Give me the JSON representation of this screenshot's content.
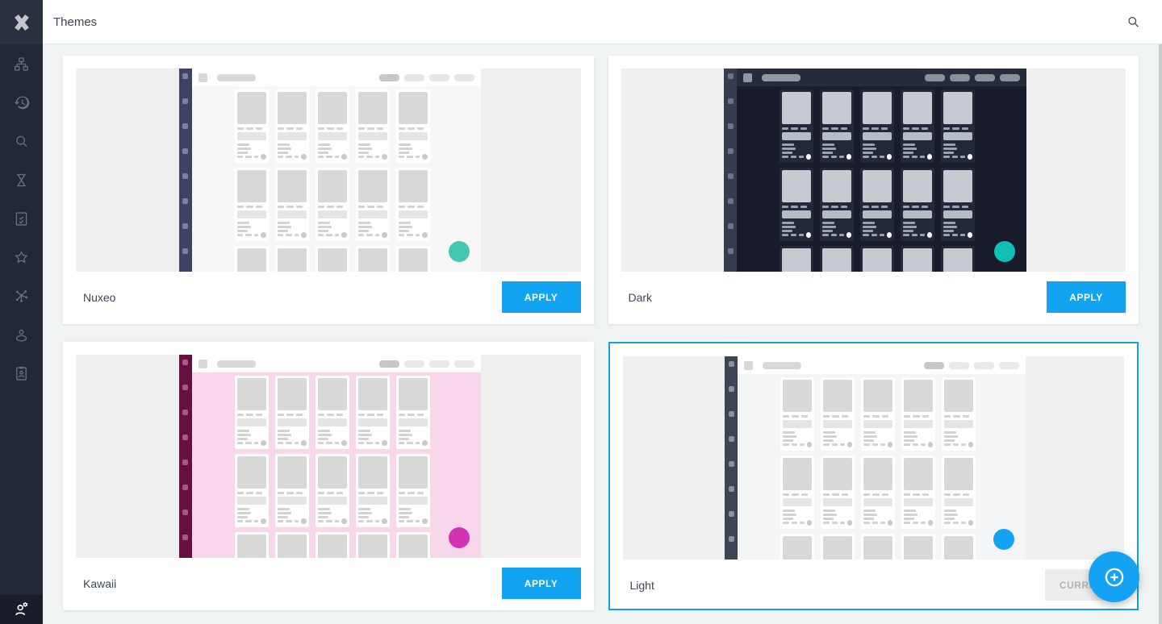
{
  "header": {
    "title": "Themes",
    "search_icon": "search-icon"
  },
  "sidebar": {
    "logo_icon": "nuxeo-x-logo",
    "items": [
      {
        "icon": "sitemap-icon"
      },
      {
        "icon": "history-icon"
      },
      {
        "icon": "search-icon"
      },
      {
        "icon": "hourglass-icon"
      },
      {
        "icon": "tasks-icon"
      },
      {
        "icon": "favorites-star-icon"
      },
      {
        "icon": "collections-hub-icon"
      },
      {
        "icon": "person-pin-icon"
      },
      {
        "icon": "profile-badge-icon"
      }
    ],
    "admin_icon": "user-settings-icon"
  },
  "colors": {
    "accent_blue": "#12a3f1",
    "selected_border": "#14a0e6",
    "page_bg": "#f0f3f4",
    "sidebar_bg": "#232836",
    "sidebar_bottom_bg": "#191d27",
    "sidebar_icon": "#697082",
    "header_text": "#3e4656"
  },
  "fab": {
    "icon": "add-circle-icon",
    "color": "#14a3f2"
  },
  "themes": [
    {
      "name": "Nuxeo",
      "selected": false,
      "button": {
        "label": "APPLY",
        "type": "apply",
        "disabled": false
      },
      "palette": {
        "margin": "#efefef",
        "stripe": "#3e4265",
        "stripe_dot": "#7d81a3",
        "topbar": "#ffffff",
        "logo": "#d8d8d8",
        "title": "#d8d8d8",
        "pill_active": "#c7c7c7",
        "pill": "#e6e6e6",
        "main": "#f7f7f8",
        "card": "#ffffff",
        "block": "#d8d8d8",
        "bar": "#e4e4e4",
        "line": "#d2d2d2",
        "dash": "#d2d2d2",
        "circle": "#c9c9c9",
        "fab": "#44c6b3"
      }
    },
    {
      "name": "Dark",
      "selected": false,
      "button": {
        "label": "APPLY",
        "type": "apply",
        "disabled": false
      },
      "palette": {
        "margin": "#efefef",
        "stripe": "#363d4d",
        "stripe_dot": "#6d7487",
        "topbar": "#272c3d",
        "logo": "#9197a3",
        "title": "#9197a3",
        "pill_active": "#8a909c",
        "pill": "#8a909c",
        "main": "#181c2b",
        "card": "#232939",
        "block": "#c7cad1",
        "bar": "#b7bbc4",
        "line": "#9ba1ad",
        "dash": "#9ba1ad",
        "circle": "#ffffff",
        "fab": "#0fc0b6"
      }
    },
    {
      "name": "Kawaii",
      "selected": false,
      "button": {
        "label": "APPLY",
        "type": "apply",
        "disabled": false
      },
      "palette": {
        "margin": "#efefef",
        "stripe": "#660f40",
        "stripe_dot": "#a85685",
        "topbar": "#ffffff",
        "logo": "#d8d8d8",
        "title": "#d8d8d8",
        "pill_active": "#c7c7c7",
        "pill": "#e9e9e9",
        "main": "#f8d7ea",
        "card": "#ffffff",
        "block": "#d8d8d8",
        "bar": "#e4e4e4",
        "line": "#d2d2d2",
        "dash": "#d2d2d2",
        "circle": "#c9c9c9",
        "fab": "#d233b2"
      }
    },
    {
      "name": "Light",
      "selected": true,
      "button": {
        "label": "CURRENT",
        "type": "current",
        "disabled": true
      },
      "palette": {
        "margin": "#efefef",
        "stripe": "#3d4453",
        "stripe_dot": "#8b909a",
        "topbar": "#ffffff",
        "logo": "#d8d8d8",
        "title": "#d8d8d8",
        "pill_active": "#c7c7c7",
        "pill": "#e9e9e9",
        "main": "#f3f5f6",
        "card": "#ffffff",
        "block": "#d8d8d8",
        "bar": "#e4e4e4",
        "line": "#d2d2d2",
        "dash": "#d2d2d2",
        "circle": "#c9c9c9",
        "fab": "#14a3f2"
      }
    }
  ]
}
